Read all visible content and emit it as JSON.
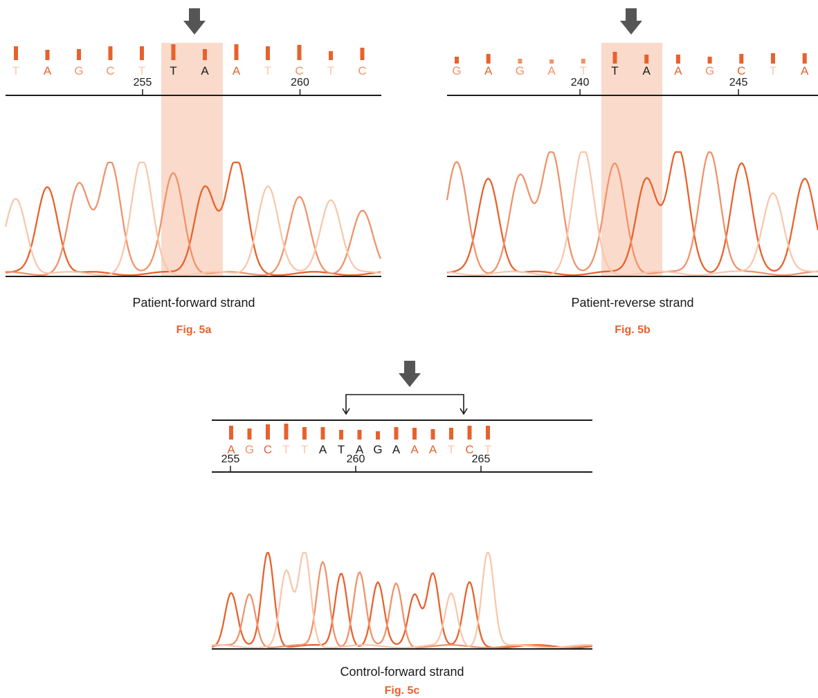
{
  "colors": {
    "dark": "#e8612c",
    "mid": "#f0926a",
    "light": "#f8c7ad",
    "highlight": "#f9d3c2",
    "black": "#1a1a1a",
    "arrow": "#555555",
    "fig_label": "#e8612c"
  },
  "panels": [
    {
      "id": "5a",
      "caption": "Patient-forward strand",
      "fig_label": "Fig. 5a",
      "bases": [
        {
          "letter": "T",
          "shade": "light",
          "bar": "dark",
          "bar_h": 20
        },
        {
          "letter": "A",
          "shade": "dark",
          "bar": "dark",
          "bar_h": 15
        },
        {
          "letter": "G",
          "shade": "mid",
          "bar": "dark",
          "bar_h": 16
        },
        {
          "letter": "C",
          "shade": "mid",
          "bar": "dark",
          "bar_h": 20
        },
        {
          "letter": "T",
          "shade": "light",
          "bar": "dark",
          "bar_h": 20
        },
        {
          "letter": "T",
          "shade": "black",
          "bar": "dark",
          "bar_h": 23
        },
        {
          "letter": "A",
          "shade": "black",
          "bar": "dark",
          "bar_h": 16
        },
        {
          "letter": "A",
          "shade": "dark",
          "bar": "dark",
          "bar_h": 23
        },
        {
          "letter": "T",
          "shade": "light",
          "bar": "dark",
          "bar_h": 20
        },
        {
          "letter": "C",
          "shade": "mid",
          "bar": "dark",
          "bar_h": 22
        },
        {
          "letter": "T",
          "shade": "light",
          "bar": "dark",
          "bar_h": 13
        },
        {
          "letter": "C",
          "shade": "mid",
          "bar": "dark",
          "bar_h": 18
        }
      ],
      "ticks": [
        {
          "label": "255",
          "pos": 4
        },
        {
          "label": "260",
          "pos": 14
        }
      ]
    },
    {
      "id": "5b",
      "caption": "Patient-reverse strand",
      "fig_label": "Fig. 5b",
      "bases": [
        {
          "letter": "G",
          "shade": "mid",
          "bar": "dark",
          "bar_h": 10
        },
        {
          "letter": "A",
          "shade": "dark",
          "bar": "dark",
          "bar_h": 14
        },
        {
          "letter": "G",
          "shade": "mid",
          "bar": "mid",
          "bar_h": 7
        },
        {
          "letter": "A",
          "shade": "mid",
          "bar": "mid",
          "bar_h": 6
        },
        {
          "letter": "T",
          "shade": "light",
          "bar": "mid",
          "bar_h": 7
        },
        {
          "letter": "T",
          "shade": "black",
          "bar": "dark",
          "bar_h": 17
        },
        {
          "letter": "A",
          "shade": "black",
          "bar": "dark",
          "bar_h": 13
        },
        {
          "letter": "A",
          "shade": "dark",
          "bar": "dark",
          "bar_h": 13
        },
        {
          "letter": "G",
          "shade": "mid",
          "bar": "dark",
          "bar_h": 10
        },
        {
          "letter": "C",
          "shade": "dark",
          "bar": "dark",
          "bar_h": 14
        },
        {
          "letter": "T",
          "shade": "light",
          "bar": "dark",
          "bar_h": 15
        },
        {
          "letter": "A",
          "shade": "dark",
          "bar": "dark",
          "bar_h": 15
        }
      ],
      "ticks": [
        {
          "label": "240",
          "pos": 9
        },
        {
          "label": "245",
          "pos": 19
        }
      ]
    },
    {
      "id": "5c",
      "caption": "Control-forward strand",
      "fig_label": "Fig. 5c",
      "bases": [
        {
          "letter": "A",
          "shade": "dark",
          "bar": "dark",
          "bar_h": 20
        },
        {
          "letter": "G",
          "shade": "mid",
          "bar": "dark",
          "bar_h": 16
        },
        {
          "letter": "C",
          "shade": "dark",
          "bar": "dark",
          "bar_h": 22
        },
        {
          "letter": "T",
          "shade": "light",
          "bar": "dark",
          "bar_h": 23
        },
        {
          "letter": "T",
          "shade": "light",
          "bar": "dark",
          "bar_h": 18
        },
        {
          "letter": "A",
          "shade": "black",
          "bar": "dark",
          "bar_h": 18
        },
        {
          "letter": "T",
          "shade": "black",
          "bar": "dark",
          "bar_h": 14
        },
        {
          "letter": "A",
          "shade": "black",
          "bar": "dark",
          "bar_h": 14
        },
        {
          "letter": "G",
          "shade": "black",
          "bar": "dark",
          "bar_h": 12
        },
        {
          "letter": "A",
          "shade": "black",
          "bar": "dark",
          "bar_h": 18
        },
        {
          "letter": "A",
          "shade": "dark",
          "bar": "dark",
          "bar_h": 17
        },
        {
          "letter": "A",
          "shade": "dark",
          "bar": "dark",
          "bar_h": 15
        },
        {
          "letter": "T",
          "shade": "light",
          "bar": "dark",
          "bar_h": 17
        },
        {
          "letter": "C",
          "shade": "dark",
          "bar": "dark",
          "bar_h": 20
        },
        {
          "letter": "T",
          "shade": "light",
          "bar": "dark",
          "bar_h": 20
        }
      ],
      "ticks": [
        {
          "label": "255",
          "pos": 0
        },
        {
          "label": "260",
          "pos": 10
        },
        {
          "label": "265",
          "pos": 20
        }
      ]
    }
  ]
}
